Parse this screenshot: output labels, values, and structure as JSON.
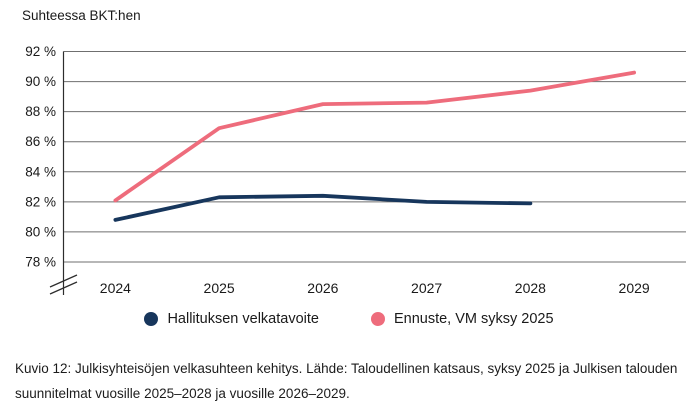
{
  "chart_data": {
    "type": "line",
    "title": "Suhteessa BKT:hen",
    "x_categories": [
      "2024",
      "2025",
      "2026",
      "2027",
      "2028",
      "2029"
    ],
    "y_ticks": [
      92,
      90,
      88,
      86,
      84,
      82,
      80,
      78
    ],
    "y_tick_suffix": " %",
    "ylim": [
      78,
      92
    ],
    "y_axis_break_below": 78,
    "grid": "horizontal",
    "legend_position": "bottom-center",
    "series": [
      {
        "name": "Hallituksen velkatavoite",
        "slug": "hallituksen-velkatavoite",
        "color": "#17365c",
        "x": [
          "2024",
          "2025",
          "2026",
          "2027",
          "2028"
        ],
        "values": [
          80.8,
          82.3,
          82.4,
          82.0,
          81.9
        ]
      },
      {
        "name": "Ennuste, VM syksy 2025",
        "slug": "ennuste-vm-syksy-2025",
        "color": "#ee6c7c",
        "x": [
          "2024",
          "2025",
          "2026",
          "2027",
          "2028",
          "2029"
        ],
        "values": [
          82.1,
          86.9,
          88.5,
          88.6,
          89.4,
          90.6
        ]
      }
    ],
    "grid_color": "#6f6f6f",
    "axis_color": "#2d2d2d",
    "text_color": "#1a1a1a"
  },
  "caption": "Kuvio 12: Julkisyhteisöjen velkasuhteen kehitys. Lähde: Taloudellinen katsaus, syksy 2025 ja Julkisen talouden suunnitelmat vuosille 2025–2028 ja vuosille 2026–2029."
}
